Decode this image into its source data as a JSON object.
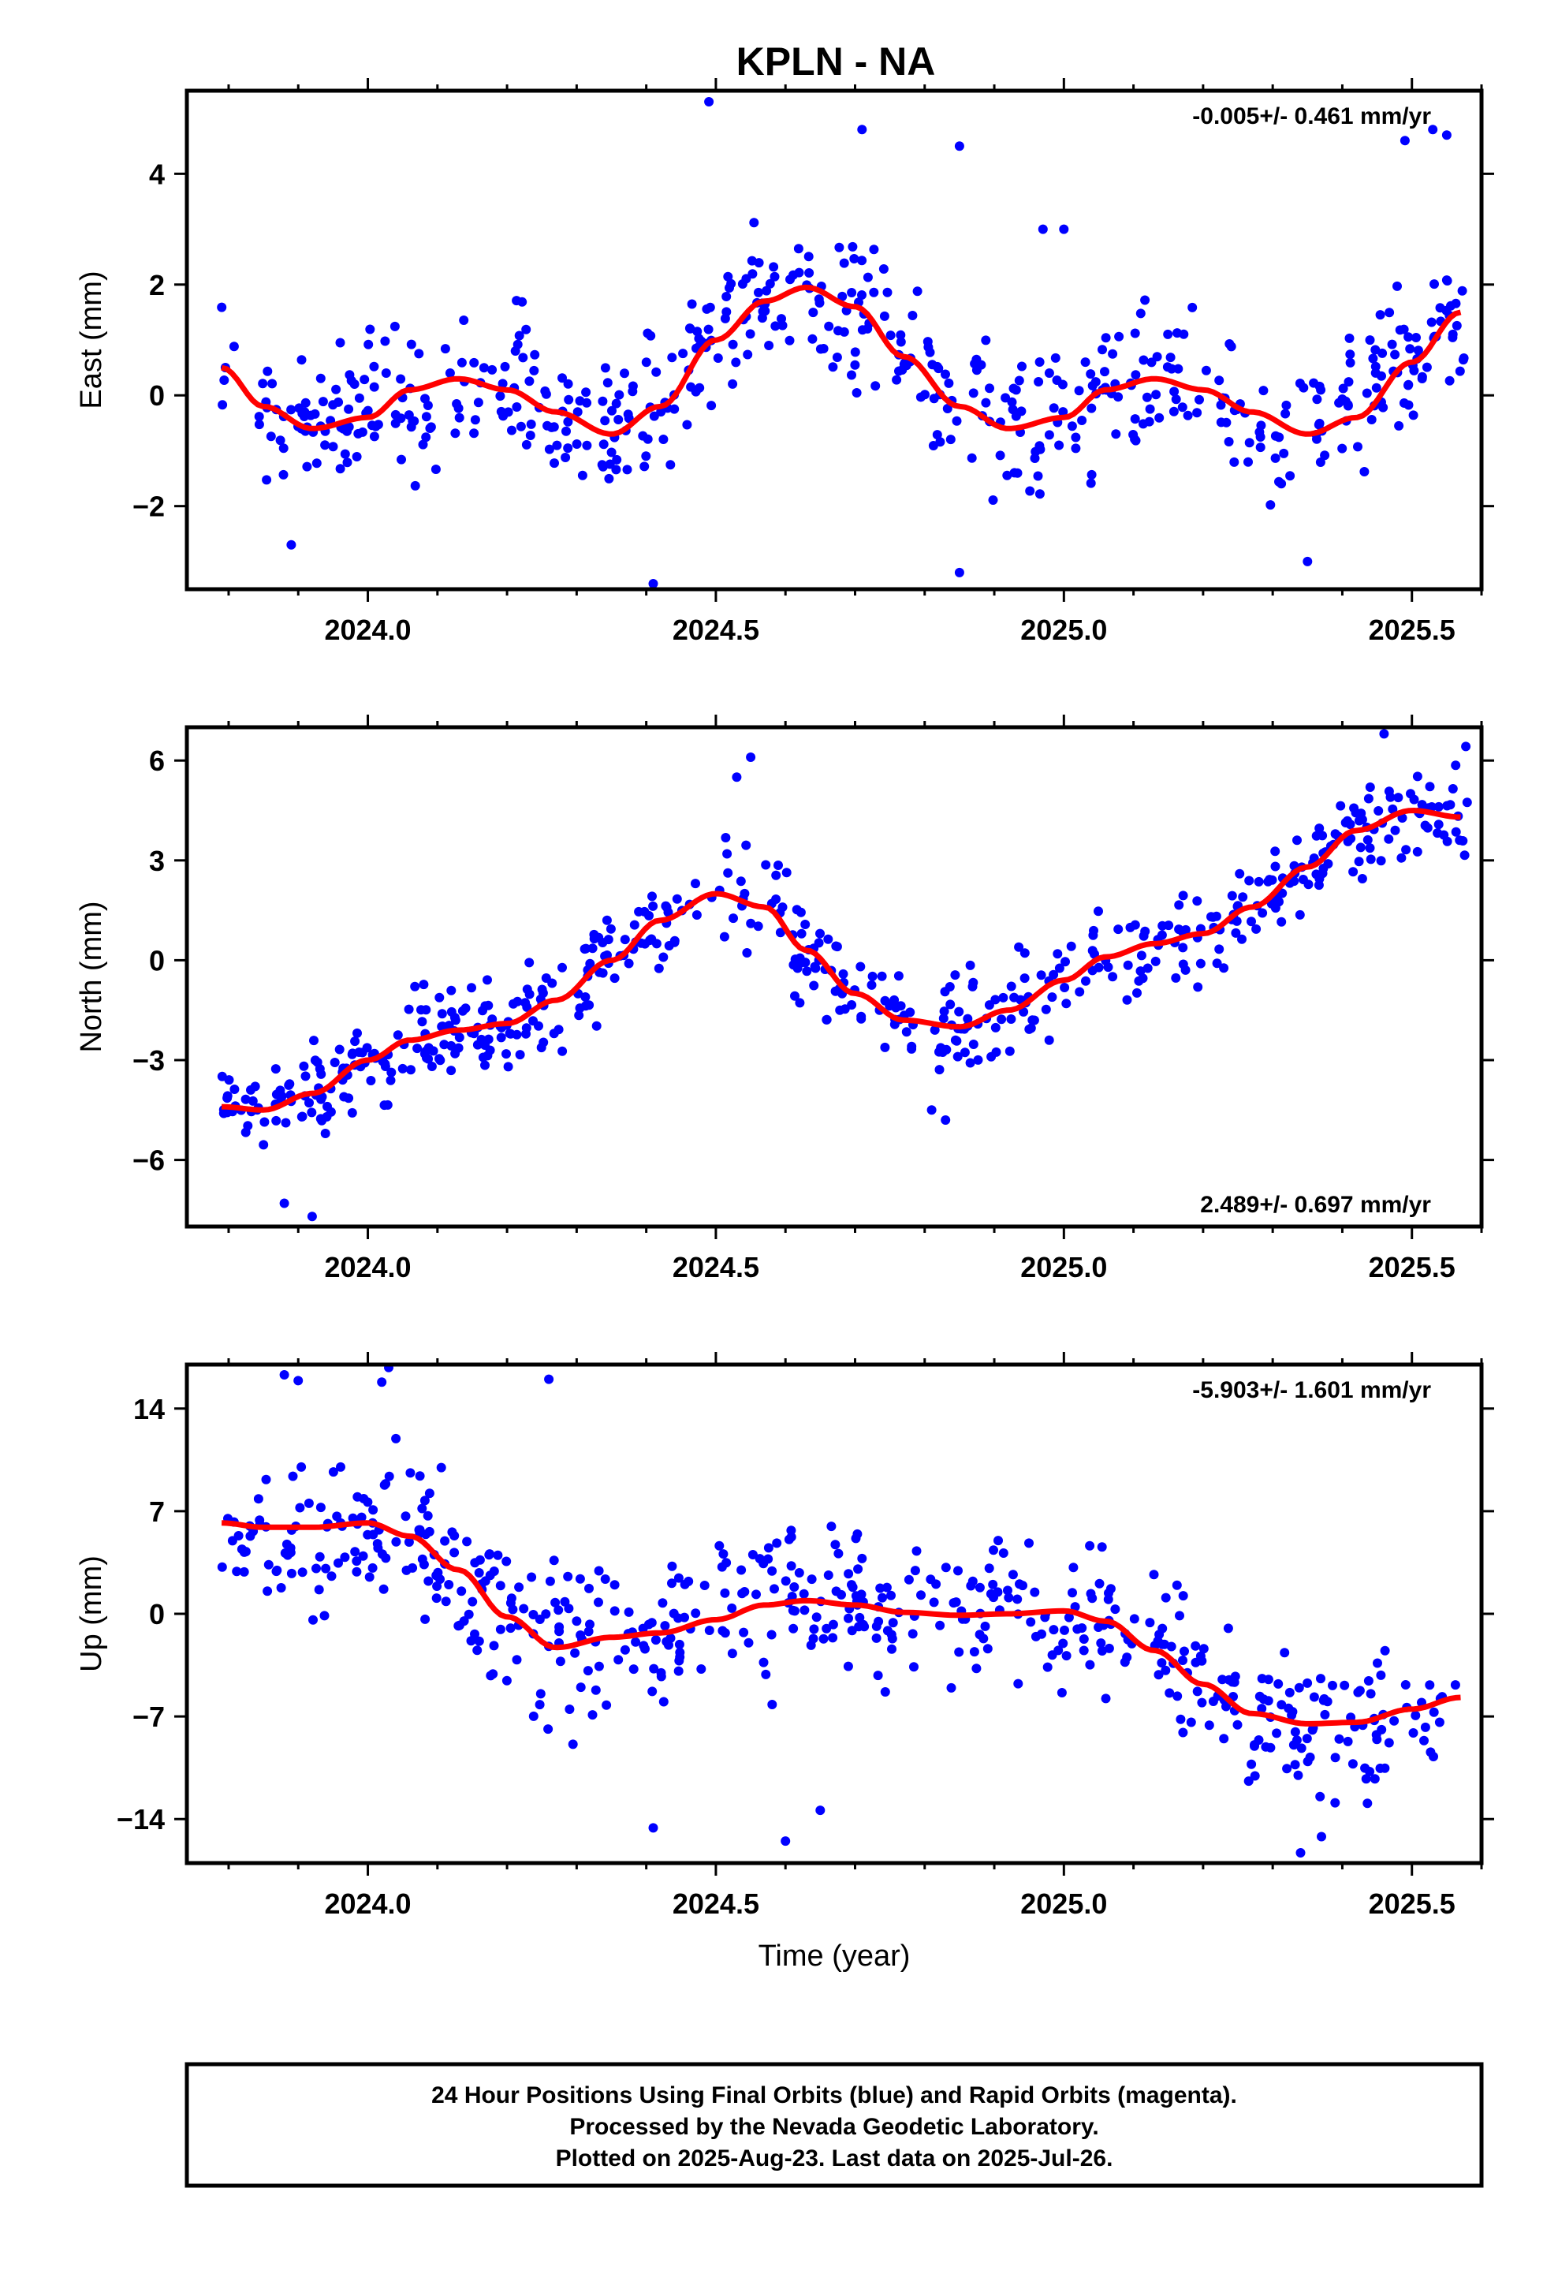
{
  "title": "KPLN - NA",
  "xlabel": "Time (year)",
  "x_tick_labels": [
    "2024.0",
    "2024.5",
    "2025.0",
    "2025.5"
  ],
  "footer": {
    "line1": "24 Hour Positions Using Final Orbits (blue) and Rapid Orbits (magenta).",
    "line2": "Processed by the Nevada Geodetic Laboratory.",
    "line3": "Plotted on 2025-Aug-23. Last data on 2025-Jul-26."
  },
  "colors": {
    "points": "#0000ff",
    "fit": "#ff0000",
    "axes": "#000000"
  },
  "chart_data": [
    {
      "type": "scatter",
      "ylabel": "East (mm)",
      "rate_text": "-0.005+/- 0.461 mm/yr",
      "rate_position": "top-right",
      "xlim": [
        2023.74,
        2025.6
      ],
      "ylim": [
        -3.5,
        5.5
      ],
      "y_ticks": [
        4,
        2,
        0,
        -2
      ],
      "y_tick_labels": [
        "4",
        "2",
        "0",
        "−2"
      ],
      "scatter_seed": 11,
      "noise_sd": 0.9,
      "point_series": "positions",
      "fit": {
        "name": "model",
        "x": [
          2023.79,
          2023.85,
          2023.92,
          2024.0,
          2024.06,
          2024.13,
          2024.2,
          2024.27,
          2024.35,
          2024.42,
          2024.5,
          2024.57,
          2024.63,
          2024.7,
          2024.77,
          2024.85,
          2024.92,
          2025.0,
          2025.06,
          2025.13,
          2025.2,
          2025.27,
          2025.35,
          2025.42,
          2025.5,
          2025.57
        ],
        "y": [
          0.5,
          -0.2,
          -0.6,
          -0.4,
          0.1,
          0.3,
          0.1,
          -0.3,
          -0.7,
          -0.2,
          1.0,
          1.7,
          1.95,
          1.6,
          0.7,
          -0.2,
          -0.6,
          -0.4,
          0.1,
          0.3,
          0.1,
          -0.3,
          -0.7,
          -0.4,
          0.6,
          1.5
        ]
      },
      "extra_points": {
        "x": [
          2024.49,
          2024.71,
          2024.85,
          2025.53,
          2025.55,
          2025.49,
          2024.41,
          2024.85,
          2025.35,
          2023.89,
          2024.97,
          2025.0
        ],
        "y": [
          5.3,
          4.8,
          4.5,
          4.8,
          4.7,
          4.6,
          -3.4,
          -3.2,
          -3.0,
          -2.7,
          3.0,
          3.0
        ]
      }
    },
    {
      "type": "scatter",
      "ylabel": "North (mm)",
      "rate_text": "2.489+/- 0.697 mm/yr",
      "rate_position": "bottom-right",
      "xlim": [
        2023.74,
        2025.6
      ],
      "ylim": [
        -8,
        7
      ],
      "y_ticks": [
        6,
        3,
        0,
        -3,
        -6
      ],
      "y_tick_labels": [
        "6",
        "3",
        "0",
        "−3",
        "−6"
      ],
      "scatter_seed": 23,
      "noise_sd": 1.0,
      "point_series": "positions",
      "fit": {
        "name": "model",
        "x": [
          2023.79,
          2023.85,
          2023.92,
          2024.0,
          2024.06,
          2024.13,
          2024.2,
          2024.27,
          2024.35,
          2024.42,
          2024.5,
          2024.57,
          2024.63,
          2024.7,
          2024.77,
          2024.85,
          2024.92,
          2025.0,
          2025.06,
          2025.13,
          2025.2,
          2025.27,
          2025.35,
          2025.42,
          2025.5,
          2025.57
        ],
        "y": [
          -4.4,
          -4.5,
          -4.0,
          -3.0,
          -2.4,
          -2.1,
          -1.9,
          -1.2,
          0.0,
          1.2,
          2.0,
          1.6,
          0.3,
          -1.0,
          -1.8,
          -2.0,
          -1.5,
          -0.6,
          0.1,
          0.5,
          0.8,
          1.6,
          2.8,
          3.9,
          4.5,
          4.3
        ]
      },
      "extra_points": {
        "x": [
          2024.55,
          2025.46,
          2024.53,
          2024.81,
          2024.83,
          2025.44,
          2023.92,
          2023.88
        ],
        "y": [
          6.1,
          6.8,
          5.5,
          -4.5,
          -4.8,
          5.2,
          -7.7,
          -7.3
        ]
      }
    },
    {
      "type": "scatter",
      "ylabel": "Up (mm)",
      "rate_text": "-5.903+/- 1.601 mm/yr",
      "rate_position": "top-right",
      "xlim": [
        2023.74,
        2025.6
      ],
      "ylim": [
        -17,
        17
      ],
      "y_ticks": [
        14,
        7,
        0,
        -7,
        -14
      ],
      "y_tick_labels": [
        "14",
        "7",
        "0",
        "−7",
        "−14"
      ],
      "scatter_seed": 37,
      "noise_sd": 3.6,
      "point_series": "positions",
      "fit": {
        "name": "model",
        "x": [
          2023.79,
          2023.85,
          2023.92,
          2024.0,
          2024.06,
          2024.13,
          2024.2,
          2024.27,
          2024.35,
          2024.42,
          2024.5,
          2024.57,
          2024.63,
          2024.7,
          2024.77,
          2024.85,
          2024.92,
          2025.0,
          2025.06,
          2025.13,
          2025.2,
          2025.27,
          2025.35,
          2025.42,
          2025.5,
          2025.57
        ],
        "y": [
          6.2,
          5.9,
          5.9,
          6.2,
          5.3,
          3.0,
          -0.2,
          -2.3,
          -1.6,
          -1.3,
          -0.4,
          0.6,
          0.9,
          0.6,
          0.1,
          -0.1,
          0.0,
          0.2,
          -0.5,
          -2.5,
          -4.8,
          -6.8,
          -7.5,
          -7.4,
          -6.5,
          -5.7
        ]
      },
      "extra_points": {
        "x": [
          2024.03,
          2024.02,
          2023.88,
          2023.9,
          2024.26,
          2024.6,
          2025.34,
          2025.37,
          2024.41,
          2024.65
        ],
        "y": [
          16.8,
          15.8,
          16.3,
          15.9,
          16.0,
          -15.5,
          -16.3,
          -15.2,
          -14.6,
          -13.4
        ]
      }
    }
  ]
}
